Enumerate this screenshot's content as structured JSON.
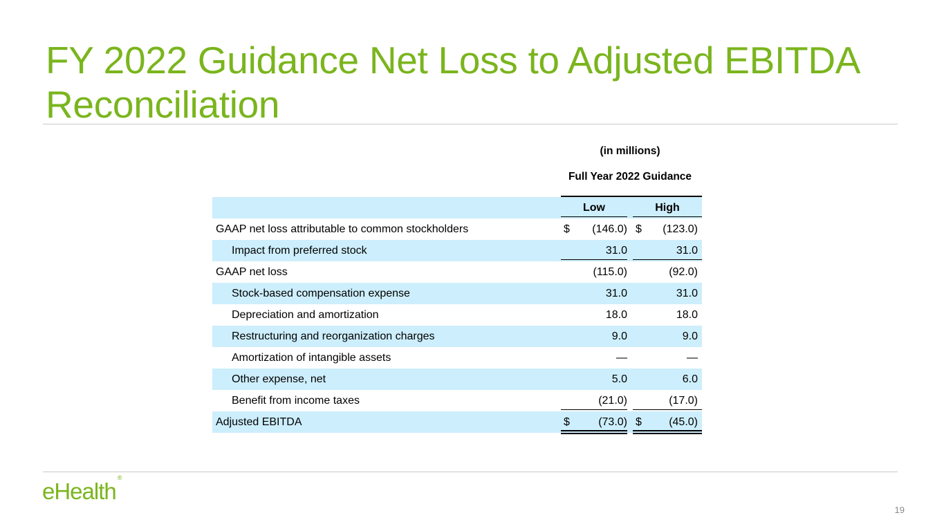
{
  "slide": {
    "title": "FY 2022 Guidance Net Loss to Adjusted EBITDA Reconciliation",
    "page_number": "19"
  },
  "logo": {
    "text": "eHealth",
    "mark": "®"
  },
  "table": {
    "units": "(in millions)",
    "period": "Full Year 2022 Guidance",
    "columns": {
      "low": "Low",
      "high": "High"
    },
    "currency": "$",
    "rows": [
      {
        "label": "GAAP net loss attributable to common stockholders",
        "low": "(146.0)",
        "high": "(123.0)"
      },
      {
        "label": "Impact from preferred stock",
        "low": "31.0",
        "high": "31.0"
      },
      {
        "label": "GAAP net loss",
        "low": "(115.0)",
        "high": "(92.0)"
      },
      {
        "label": "Stock-based compensation expense",
        "low": "31.0",
        "high": "31.0"
      },
      {
        "label": "Depreciation and amortization",
        "low": "18.0",
        "high": "18.0"
      },
      {
        "label": "Restructuring and reorganization charges",
        "low": "9.0",
        "high": "9.0"
      },
      {
        "label": "Amortization of intangible assets",
        "low": "—",
        "high": "—"
      },
      {
        "label": "Other expense, net",
        "low": "5.0",
        "high": "6.0"
      },
      {
        "label": "Benefit from income taxes",
        "low": "(21.0)",
        "high": "(17.0)"
      },
      {
        "label": "Adjusted EBITDA",
        "low": "(73.0)",
        "high": "(45.0)"
      }
    ]
  }
}
